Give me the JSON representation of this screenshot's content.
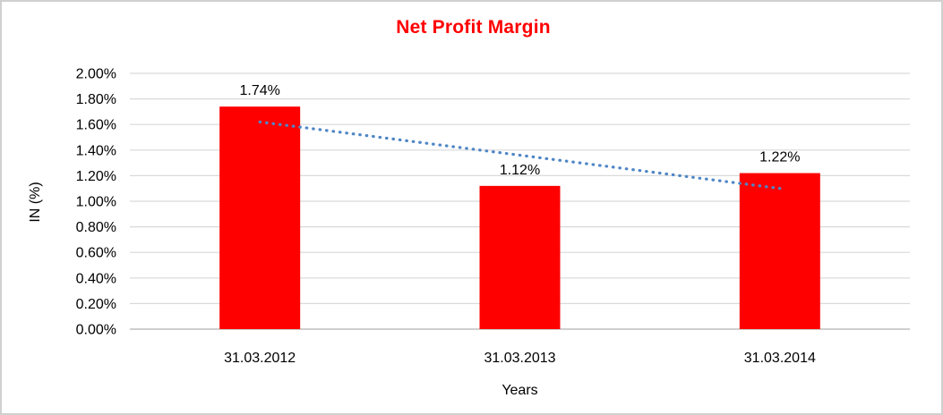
{
  "page": {
    "background": "#ffffff",
    "border_color": "#d0d0d0"
  },
  "chart_data": {
    "type": "bar",
    "title": "Net Profit Margin",
    "title_color": "#ff0000",
    "xlabel": "Years",
    "ylabel": "IN (%)",
    "categories": [
      "31.03.2012",
      "31.03.2013",
      "31.03.2014"
    ],
    "series": [
      {
        "name": "Net Profit Margin",
        "color": "#ff0000",
        "values": [
          1.74,
          1.12,
          1.22
        ],
        "data_labels": [
          "1.74%",
          "1.12%",
          "1.22%"
        ]
      }
    ],
    "ylim": [
      0,
      2
    ],
    "ytick_step": 0.2,
    "ytick_labels": [
      "0.00%",
      "0.20%",
      "0.40%",
      "0.60%",
      "0.80%",
      "1.00%",
      "1.20%",
      "1.40%",
      "1.60%",
      "1.80%",
      "2.00%"
    ],
    "grid": true,
    "legend": false,
    "gridline_color": "#d9d9d9",
    "axis_line_color": "#bfbfbf",
    "text_color": "#000000",
    "trendline": {
      "type": "linear",
      "style": "dotted",
      "color": "#4f86c6",
      "start_value": 1.62,
      "end_value": 1.1
    }
  }
}
